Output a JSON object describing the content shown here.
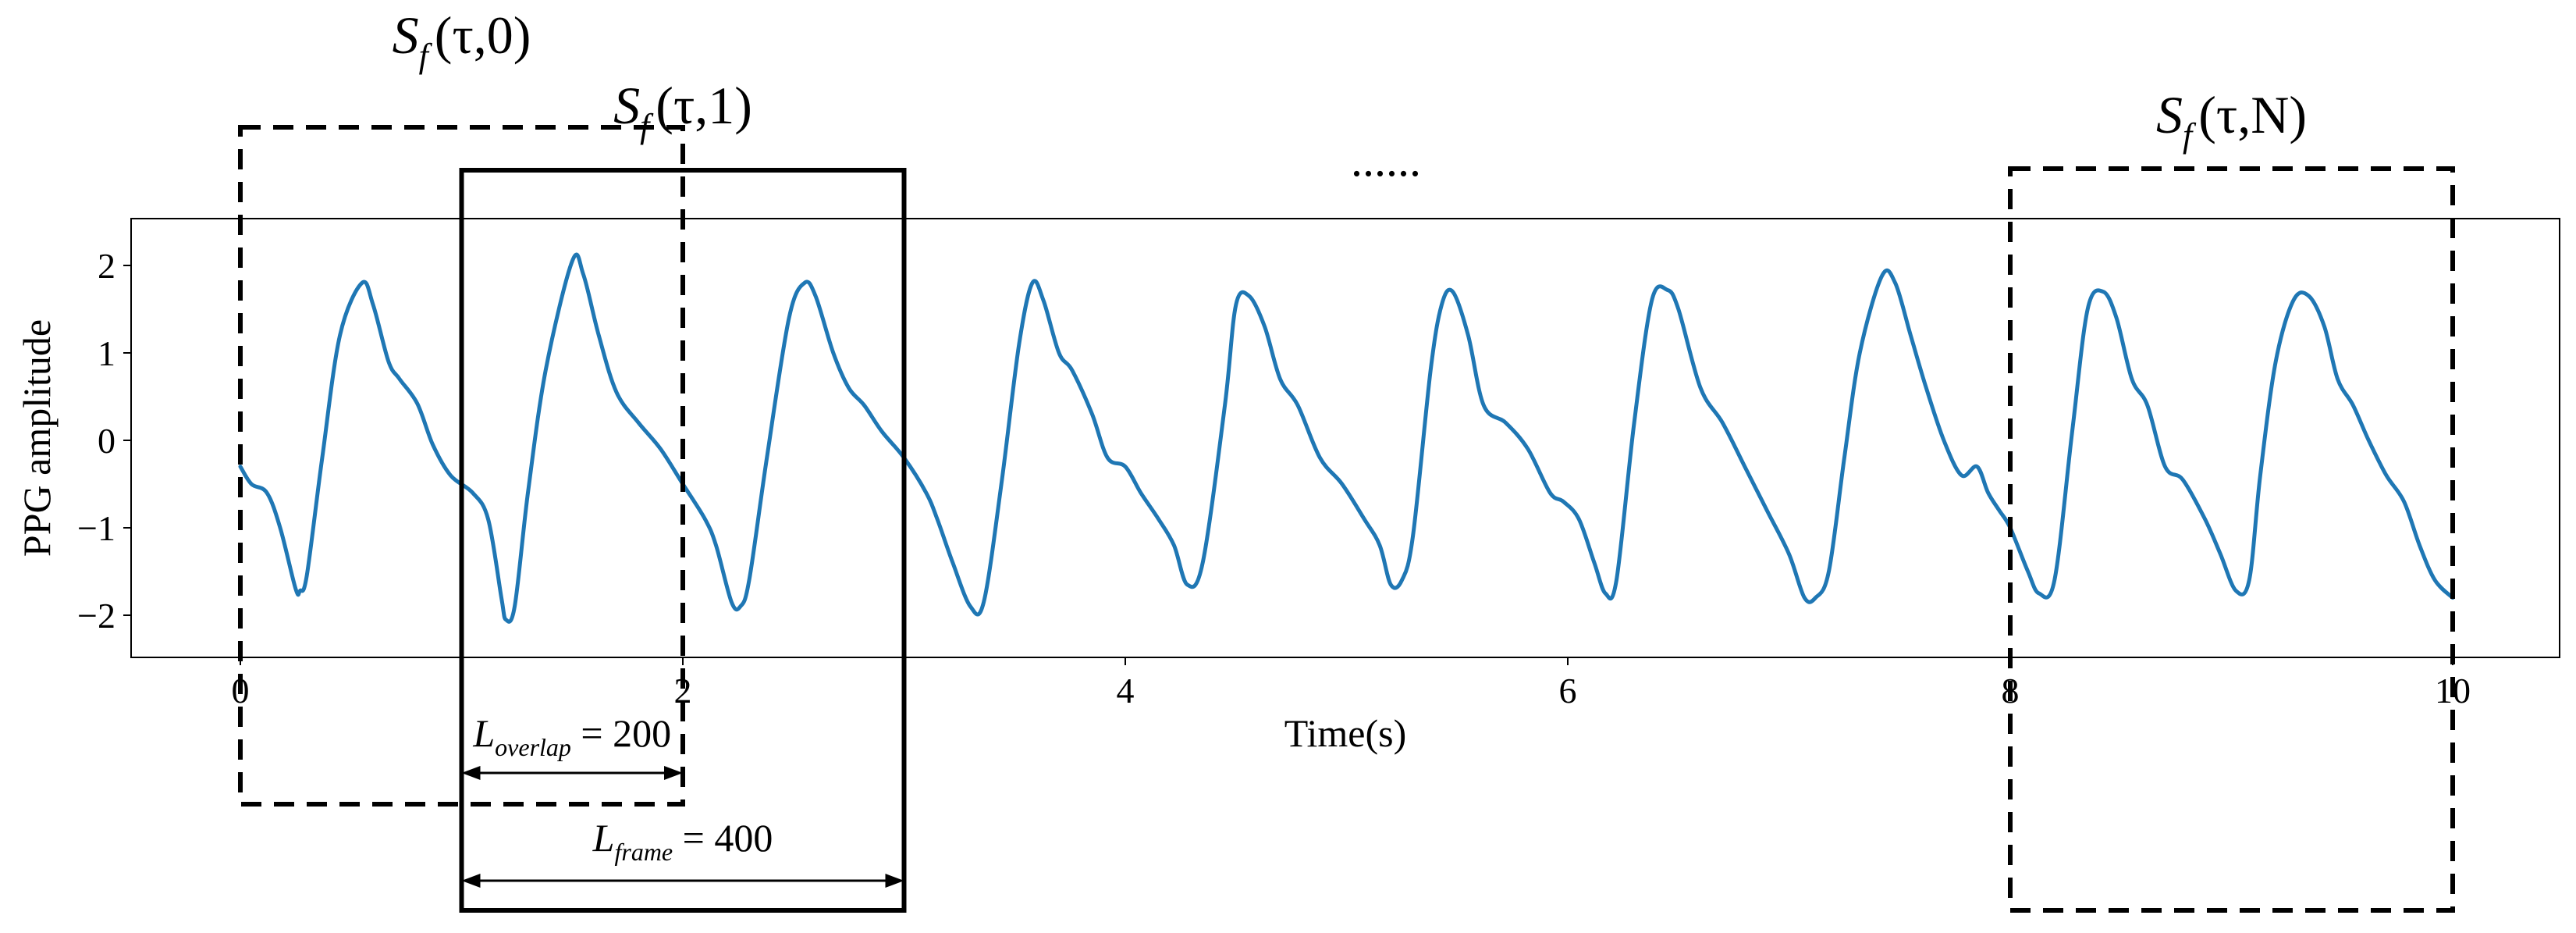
{
  "chart_data": {
    "type": "line",
    "xlabel": "Time(s)",
    "ylabel": "PPG amplitude",
    "xlim": [
      -0.5,
      10.5
    ],
    "ylim": [
      -2.5,
      2.5
    ],
    "x_ticks": [
      0,
      2,
      4,
      6,
      8,
      10
    ],
    "y_ticks": [
      -2,
      -1,
      0,
      1,
      2
    ],
    "grid": false,
    "line_color": "#1f77b4",
    "series": [
      {
        "x": [
          0,
          0.05,
          0.12,
          0.18,
          0.25,
          0.27,
          0.3,
          0.37,
          0.45,
          0.55,
          0.6,
          0.67,
          0.72,
          0.8,
          0.87,
          0.95,
          1.05,
          1.12,
          1.18,
          1.2,
          1.24,
          1.3,
          1.38,
          1.5,
          1.55,
          1.62,
          1.7,
          1.8,
          1.9,
          2.0,
          2.1,
          2.15,
          2.22,
          2.26,
          2.3,
          2.38,
          2.48,
          2.55,
          2.6,
          2.68,
          2.75,
          2.82,
          2.9,
          3.0,
          3.1,
          3.15,
          3.22,
          3.3,
          3.36,
          3.44,
          3.52,
          3.58,
          3.63,
          3.7,
          3.76,
          3.85,
          3.92,
          4.0,
          4.07,
          4.15,
          4.22,
          4.28,
          4.35,
          4.45,
          4.5,
          4.56,
          4.63,
          4.7,
          4.78,
          4.88,
          4.98,
          5.08,
          5.15,
          5.2,
          5.25,
          5.3,
          5.38,
          5.43,
          5.48,
          5.55,
          5.62,
          5.72,
          5.82,
          5.92,
          5.98,
          6.05,
          6.12,
          6.17,
          6.22,
          6.3,
          6.38,
          6.45,
          6.5,
          6.6,
          6.7,
          6.8,
          6.9,
          7.0,
          7.07,
          7.12,
          7.18,
          7.25,
          7.32,
          7.42,
          7.48,
          7.55,
          7.62,
          7.7,
          7.78,
          7.85,
          7.9,
          7.95,
          8.0,
          8.08,
          8.13,
          8.2,
          8.28,
          8.35,
          8.42,
          8.48,
          8.55,
          8.62,
          8.7,
          8.78,
          8.88,
          8.95,
          9.02,
          9.08,
          9.13,
          9.2,
          9.28,
          9.35,
          9.42,
          9.48,
          9.55,
          9.62,
          9.7,
          9.78,
          9.85,
          9.92,
          10.0
        ],
        "y": [
          -0.3,
          -0.5,
          -0.6,
          -1.0,
          -1.7,
          -1.72,
          -1.55,
          -0.2,
          1.2,
          1.8,
          1.55,
          0.9,
          0.7,
          0.42,
          -0.05,
          -0.4,
          -0.6,
          -0.9,
          -1.8,
          -2.05,
          -1.9,
          -0.6,
          0.8,
          2.05,
          1.9,
          1.2,
          0.55,
          0.2,
          -0.1,
          -0.5,
          -0.9,
          -1.2,
          -1.85,
          -1.9,
          -1.6,
          -0.2,
          1.4,
          1.8,
          1.65,
          1.0,
          0.6,
          0.4,
          0.1,
          -0.2,
          -0.6,
          -0.9,
          -1.4,
          -1.9,
          -1.85,
          -0.5,
          1.1,
          1.8,
          1.6,
          1.0,
          0.8,
          0.3,
          -0.2,
          -0.3,
          -0.6,
          -0.9,
          -1.2,
          -1.65,
          -1.4,
          0.4,
          1.55,
          1.65,
          1.3,
          0.7,
          0.4,
          -0.2,
          -0.5,
          -0.9,
          -1.2,
          -1.65,
          -1.6,
          -1.1,
          0.8,
          1.55,
          1.7,
          1.2,
          0.4,
          0.2,
          -0.1,
          -0.6,
          -0.7,
          -0.9,
          -1.4,
          -1.75,
          -1.6,
          0.2,
          1.6,
          1.72,
          1.5,
          0.6,
          0.2,
          -0.3,
          -0.8,
          -1.3,
          -1.8,
          -1.8,
          -1.5,
          -0.2,
          1.0,
          1.88,
          1.8,
          1.2,
          0.6,
          0.0,
          -0.4,
          -0.3,
          -0.6,
          -0.8,
          -1.0,
          -1.5,
          -1.75,
          -1.6,
          0.1,
          1.5,
          1.7,
          1.4,
          0.7,
          0.4,
          -0.3,
          -0.45,
          -0.9,
          -1.3,
          -1.72,
          -1.6,
          -0.4,
          0.9,
          1.6,
          1.65,
          1.3,
          0.7,
          0.4,
          0.0,
          -0.4,
          -0.7,
          -1.2,
          -1.6,
          -1.8
        ]
      }
    ],
    "frames": [
      {
        "label_base": "S",
        "label_sub": "f",
        "label_args": "(τ,0)",
        "x_start": 0,
        "x_end": 2,
        "style": "dashed"
      },
      {
        "label_base": "S",
        "label_sub": "f",
        "label_args": "(τ,1)",
        "x_start": 1,
        "x_end": 3,
        "style": "solid"
      },
      {
        "label_base": "S",
        "label_sub": "f",
        "label_args": "(τ,N)",
        "x_start": 8,
        "x_end": 10,
        "style": "dashed"
      }
    ],
    "ellipsis": "......",
    "annotations": [
      {
        "base": "L",
        "sub": "overlap",
        "rest": " = 200",
        "x_start": 1,
        "x_end": 2
      },
      {
        "base": "L",
        "sub": "frame",
        "rest": " = 400",
        "x_start": 1,
        "x_end": 3
      }
    ]
  }
}
